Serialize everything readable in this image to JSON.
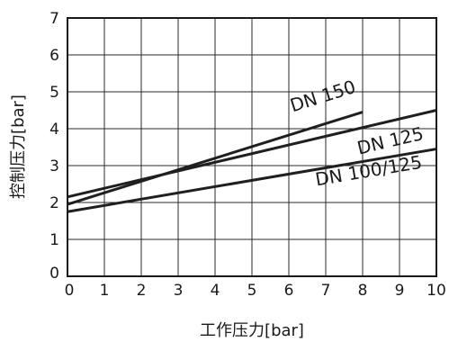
{
  "chart_data": {
    "type": "line",
    "title": "",
    "xlabel": "工作压力[bar]",
    "ylabel": "控制压力[bar]",
    "xlim": [
      0,
      10
    ],
    "ylim": [
      0,
      7
    ],
    "x_ticks": [
      "0",
      "1",
      "2",
      "3",
      "4",
      "5",
      "6",
      "7",
      "8",
      "9",
      "10"
    ],
    "y_ticks": [
      "0",
      "1",
      "2",
      "3",
      "4",
      "5",
      "6",
      "7"
    ],
    "grid": true,
    "series": [
      {
        "name": "DN 150",
        "x": [
          0,
          8
        ],
        "y": [
          1.95,
          4.45
        ]
      },
      {
        "name": "DN 125",
        "x": [
          0,
          10
        ],
        "y": [
          2.15,
          4.5
        ]
      },
      {
        "name": "DN 100/125",
        "x": [
          0,
          10
        ],
        "y": [
          1.75,
          3.45
        ]
      }
    ]
  }
}
